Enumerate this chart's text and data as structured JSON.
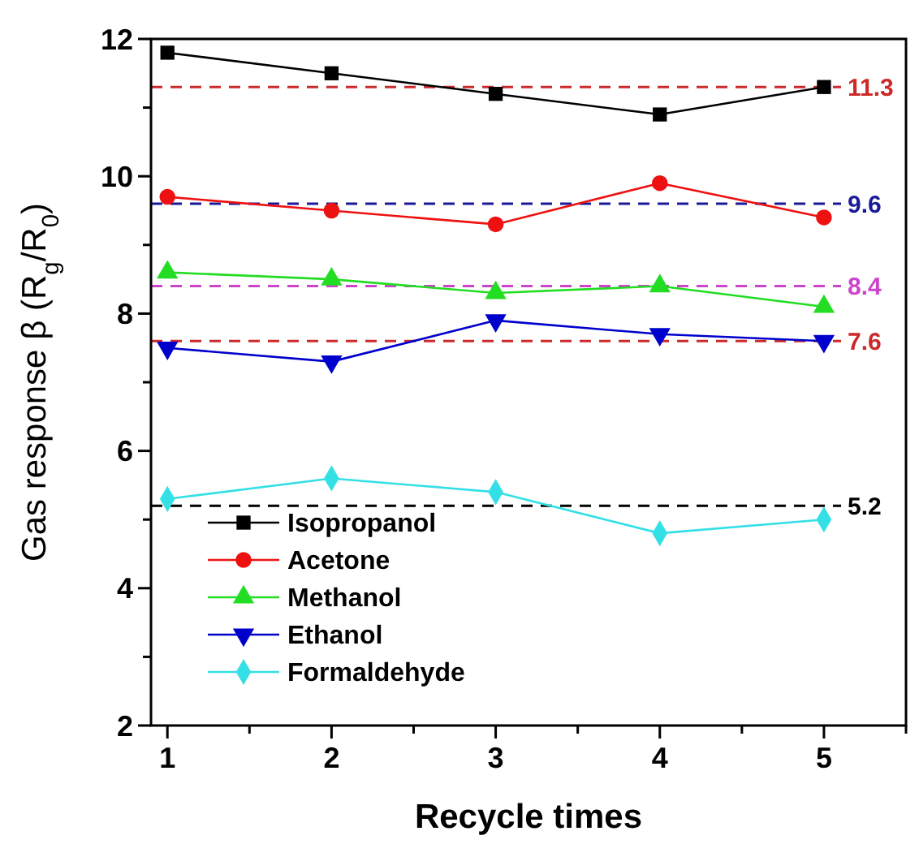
{
  "chart_data": {
    "type": "line",
    "xlabel": "Recycle times",
    "ylabel": "Gas response β (R$_{g}$/R$_{0}$)",
    "x": [
      1,
      2,
      3,
      4,
      5
    ],
    "xlim": [
      0.9,
      5.5
    ],
    "xticks": [
      1,
      {
        "value": 1.5,
        "label": null
      },
      2,
      {
        "value": 2.5,
        "label": null
      },
      3,
      {
        "value": 3.5,
        "label": null
      },
      4,
      {
        "value": 4.5,
        "label": null
      },
      5,
      {
        "value": 5.5,
        "label": null
      }
    ],
    "ylim": [
      2,
      12
    ],
    "yticks": [
      2,
      {
        "value": 3,
        "label": null
      },
      4,
      {
        "value": 5,
        "label": null
      },
      6,
      {
        "value": 7,
        "label": null
      },
      8,
      {
        "value": 9,
        "label": null
      },
      10,
      {
        "value": 11,
        "label": null
      },
      12
    ],
    "series": [
      {
        "name": "Isopropanol",
        "color": "#000000",
        "marker": "square",
        "values": [
          11.8,
          11.5,
          11.2,
          10.9,
          11.3
        ]
      },
      {
        "name": "Acetone",
        "color": "#ee1111",
        "marker": "circle",
        "values": [
          9.7,
          9.5,
          9.3,
          9.9,
          9.4
        ]
      },
      {
        "name": "Methanol",
        "color": "#22dd22",
        "marker": "triangle",
        "values": [
          8.6,
          8.5,
          8.3,
          8.4,
          8.1
        ]
      },
      {
        "name": "Ethanol",
        "color": "#0000cc",
        "marker": "triangle-down",
        "values": [
          7.5,
          7.3,
          7.9,
          7.7,
          7.6
        ]
      },
      {
        "name": "Formaldehyde",
        "color": "#33e0e6",
        "marker": "diamond",
        "values": [
          5.3,
          5.6,
          5.4,
          4.8,
          5.0
        ]
      }
    ],
    "ref_lines": [
      {
        "axis": "y",
        "value": 11.3,
        "label": "11.3",
        "color": "#cc2a2a",
        "line_style": "dashed"
      },
      {
        "axis": "y",
        "value": 9.6,
        "label": "9.6",
        "color": "#1a1a99",
        "line_style": "dashed"
      },
      {
        "axis": "y",
        "value": 8.4,
        "label": "8.4",
        "color": "#cc44cc",
        "line_style": "dashed"
      },
      {
        "axis": "y",
        "value": 7.6,
        "label": "7.6",
        "color": "#cc2a2a",
        "line_style": "dashed"
      },
      {
        "axis": "y",
        "value": 5.2,
        "label": "5.2",
        "color": "#000000",
        "line_style": "dashed"
      }
    ],
    "legend": "bottom left",
    "grid": false
  }
}
